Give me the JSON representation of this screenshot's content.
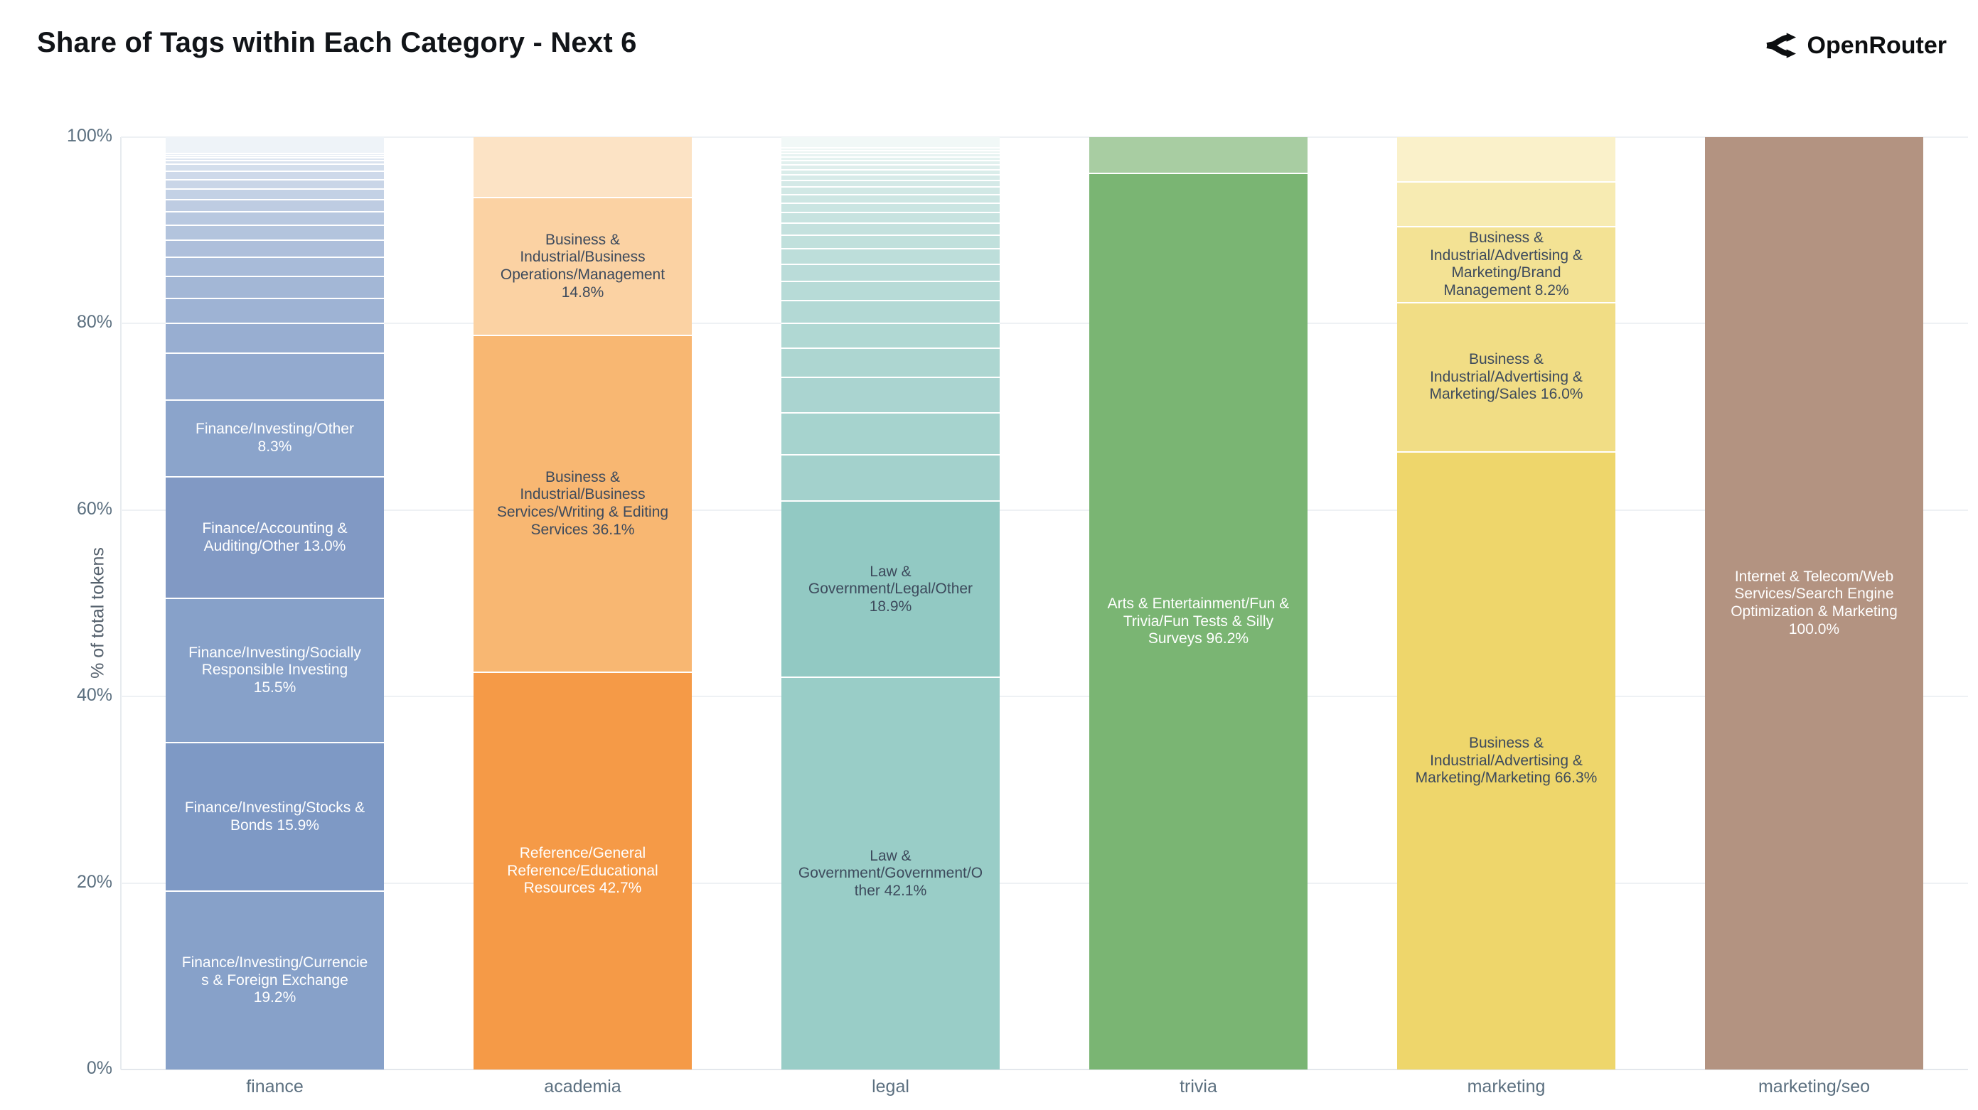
{
  "header": {
    "title": "Share of Tags within Each Category - Next 6",
    "brand": "OpenRouter"
  },
  "chart_data": {
    "type": "bar",
    "stacked": true,
    "title": "Share of Tags within Each Category - Next 6",
    "xlabel": "",
    "ylabel": "% of total tokens",
    "ylim": [
      0,
      100
    ],
    "yticks": [
      {
        "value": 0,
        "label": "0%"
      },
      {
        "value": 20,
        "label": "20%"
      },
      {
        "value": 40,
        "label": "40%"
      },
      {
        "value": 60,
        "label": "60%"
      },
      {
        "value": 80,
        "label": "80%"
      },
      {
        "value": 100,
        "label": "100%"
      }
    ],
    "grid": true,
    "legend": false,
    "categories": [
      "finance",
      "academia",
      "legal",
      "trivia",
      "marketing",
      "marketing/seo"
    ],
    "bars": [
      {
        "category": "finance",
        "ramp_top": "#eef3f8",
        "ramp_bottom": "#93aacf",
        "segments": [
          {
            "value": 1.7
          },
          {
            "value": 0.2
          },
          {
            "value": 0.25
          },
          {
            "value": 0.3
          },
          {
            "value": 0.35
          },
          {
            "value": 0.8
          },
          {
            "value": 0.9
          },
          {
            "value": 1.0
          },
          {
            "value": 1.15
          },
          {
            "value": 1.3
          },
          {
            "value": 1.45
          },
          {
            "value": 1.6
          },
          {
            "value": 1.8
          },
          {
            "value": 2.05
          },
          {
            "value": 2.35
          },
          {
            "value": 2.7
          },
          {
            "value": 3.2
          },
          {
            "value": 5.0
          },
          {
            "value": 8.3,
            "label": "Finance/Investing/Other 8.3%",
            "color": "#8ba4cb",
            "text_color": "#ffffff"
          },
          {
            "value": 13.0,
            "label": "Finance/Accounting & Auditing/Other 13.0%",
            "color": "#8199c4",
            "text_color": "#ffffff"
          },
          {
            "value": 15.5,
            "label": "Finance/Investing/Socially Responsible Investing 15.5%",
            "color": "#87a1c9",
            "text_color": "#ffffff"
          },
          {
            "value": 15.9,
            "label": "Finance/Investing/Stocks & Bonds 15.9%",
            "color": "#7e99c5",
            "text_color": "#ffffff"
          },
          {
            "value": 19.2,
            "label": "Finance/Investing/Currencies & Foreign Exchange 19.2%",
            "color": "#87a1c9",
            "text_color": "#ffffff"
          }
        ]
      },
      {
        "category": "academia",
        "segments": [
          {
            "value": 6.4,
            "color": "#fce3c5"
          },
          {
            "value": 14.8,
            "label": "Business & Industrial/Business Operations/Management 14.8%",
            "color": "#fbd2a3",
            "text_color": "#3d4a5c"
          },
          {
            "value": 36.1,
            "label": "Business & Industrial/Business Services/Writing & Editing Services 36.1%",
            "color": "#f8b772",
            "text_color": "#3d4a5c"
          },
          {
            "value": 42.7,
            "label": "Reference/General Reference/Educational Resources 42.7%",
            "color": "#f59a47",
            "text_color": "#ffffff"
          }
        ]
      },
      {
        "category": "legal",
        "ramp_top": "#f1f8f7",
        "ramp_bottom": "#a3d1cc",
        "segments": [
          {
            "value": 1.1
          },
          {
            "value": 0.3
          },
          {
            "value": 0.3
          },
          {
            "value": 0.35
          },
          {
            "value": 0.4
          },
          {
            "value": 0.45
          },
          {
            "value": 0.5
          },
          {
            "value": 0.55
          },
          {
            "value": 0.65
          },
          {
            "value": 0.7
          },
          {
            "value": 0.8
          },
          {
            "value": 0.9
          },
          {
            "value": 1.0
          },
          {
            "value": 1.15
          },
          {
            "value": 1.3
          },
          {
            "value": 1.45
          },
          {
            "value": 1.65
          },
          {
            "value": 1.85
          },
          {
            "value": 2.1
          },
          {
            "value": 2.4
          },
          {
            "value": 2.7
          },
          {
            "value": 3.1
          },
          {
            "value": 3.8
          },
          {
            "value": 4.5
          },
          {
            "value": 5.0
          },
          {
            "value": 18.9,
            "label": "Law & Government/Legal/Other 18.9%",
            "color": "#92c9c3",
            "text_color": "#3d4a5c"
          },
          {
            "value": 42.1,
            "label": "Law & Government/Government/Other 42.1%",
            "color": "#99cdc7",
            "text_color": "#3d4a5c"
          }
        ]
      },
      {
        "category": "trivia",
        "segments": [
          {
            "value": 3.8,
            "color": "#a8cda2"
          },
          {
            "value": 96.2,
            "label": "Arts & Entertainment/Fun & Trivia/Fun Tests & Silly Surveys 96.2%",
            "color": "#7ab573",
            "text_color": "#ffffff"
          }
        ]
      },
      {
        "category": "marketing",
        "segments": [
          {
            "value": 4.7,
            "color": "#faf1ca"
          },
          {
            "value": 4.8,
            "color": "#f7ebb2"
          },
          {
            "value": 8.2,
            "label": "Business & Industrial/Advertising & Marketing/Brand Management 8.2%",
            "color": "#f3e294",
            "text_color": "#3d4a5c"
          },
          {
            "value": 16.0,
            "label": "Business & Industrial/Advertising & Marketing/Sales 16.0%",
            "color": "#f1dd85",
            "text_color": "#3d4a5c"
          },
          {
            "value": 66.3,
            "label": "Business & Industrial/Advertising & Marketing/Marketing 66.3%",
            "color": "#eed66b",
            "text_color": "#3d4a5c"
          }
        ]
      },
      {
        "category": "marketing/seo",
        "segments": [
          {
            "value": 100.0,
            "label": "Internet & Telecom/Web Services/Search Engine Optimization & Marketing 100.0%",
            "color": "#b39381",
            "text_color": "#ffffff"
          }
        ]
      }
    ]
  }
}
